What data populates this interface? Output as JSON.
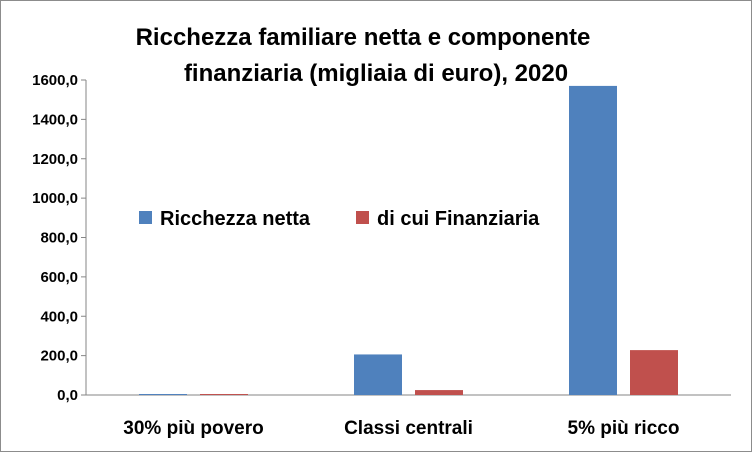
{
  "chart_data": {
    "type": "bar",
    "title_lines": [
      "Ricchezza familiare netta e componente",
      "finanziaria (migliaia di euro), 2020"
    ],
    "categories": [
      "30% più povero",
      "Classi centrali",
      "5% più ricco"
    ],
    "series": [
      {
        "name": "Ricchezza netta",
        "color": "#4f81bd",
        "values": [
          5.0,
          206.0,
          1570.0
        ]
      },
      {
        "name": "di cui Finanziaria",
        "color": "#c0504d",
        "values": [
          5.0,
          25.0,
          228.0
        ]
      }
    ],
    "ylim": [
      0,
      1600
    ],
    "yticks": [
      0,
      200,
      400,
      600,
      800,
      1000,
      1200,
      1400,
      1600
    ],
    "ytick_labels": [
      "0,0",
      "200,0",
      "400,0",
      "600,0",
      "800,0",
      "1000,0",
      "1200,0",
      "1400,0",
      "1600,0"
    ],
    "grid": false,
    "legend_position": "center-left"
  }
}
